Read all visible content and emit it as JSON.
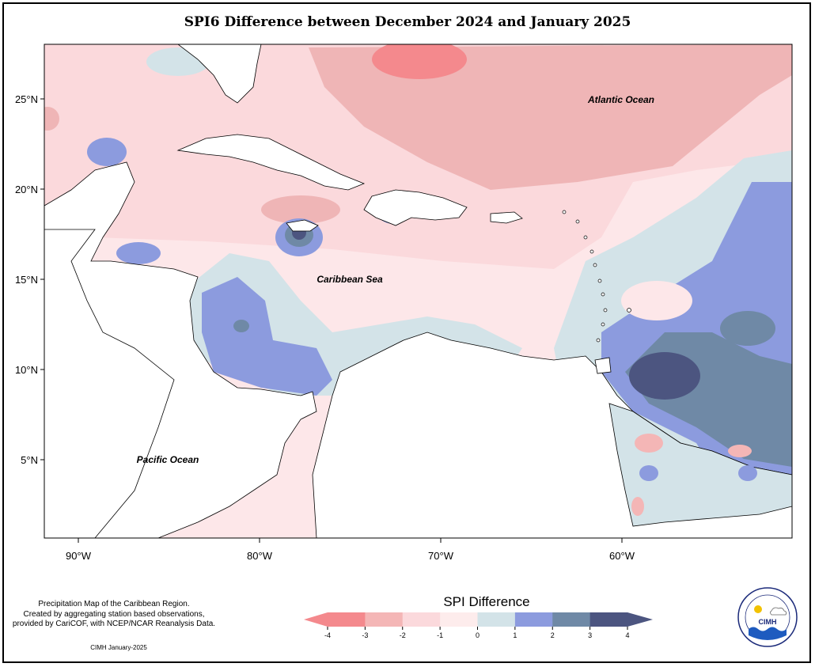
{
  "title": "SPI6 Difference between December 2024 and January 2025",
  "axes": {
    "lat_labels": [
      "25°N",
      "20°N",
      "15°N",
      "10°N",
      "5°N"
    ],
    "lon_labels": [
      "90°W",
      "80°W",
      "70°W",
      "60°W"
    ]
  },
  "map_labels": {
    "atlantic": "Atlantic Ocean",
    "caribbean": "Caribbean Sea",
    "pacific": "Pacific Ocean"
  },
  "legend": {
    "title": "SPI Difference",
    "ticks": [
      "-4",
      "-3",
      "-2",
      "-1",
      "0",
      "1",
      "2",
      "3",
      "4"
    ],
    "colors": [
      "#f4898d",
      "#f4b6b6",
      "#fbd9dc",
      "#fdecec",
      "#d3e3e8",
      "#8c9bde",
      "#6f89a6",
      "#4c5580"
    ]
  },
  "footer": {
    "note_line1": "Precipitation Map of the Caribbean Region.",
    "note_line2": "Created by aggregating station based observations,",
    "note_line3": "provided by CariCOF, with NCEP/NCAR Reanalysis Data.",
    "credit": "CIMH January-2025"
  },
  "logo": {
    "acronym": "CIMH"
  }
}
